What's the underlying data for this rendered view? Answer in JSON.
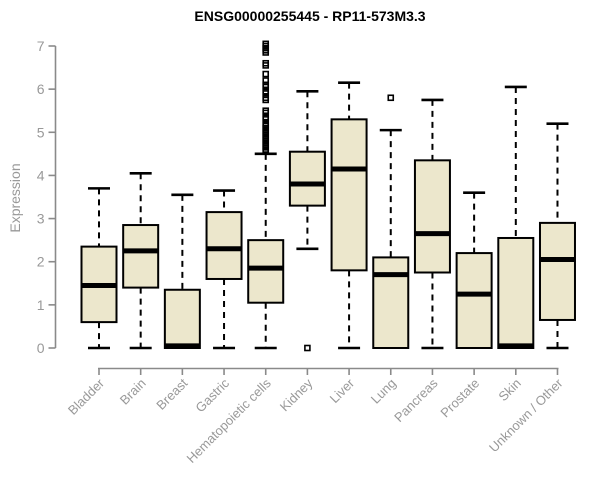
{
  "chart_data": {
    "type": "boxplot",
    "title": "ENSG00000255445 - RP11-573M3.3",
    "ylabel": "Expression",
    "xlabel": "",
    "ylim": [
      0,
      7
    ],
    "yticks": [
      0,
      1,
      2,
      3,
      4,
      5,
      6,
      7
    ],
    "grid": false,
    "legend": "none",
    "categories": [
      "Bladder",
      "Brain",
      "Breast",
      "Gastric",
      "Hematopoietic cells",
      "Kidney",
      "Liver",
      "Lung",
      "Pancreas",
      "Prostate",
      "Skin",
      "Unknown / Other"
    ],
    "series": [
      {
        "name": "Bladder",
        "whisker_low": 0,
        "q1": 0.6,
        "median": 1.45,
        "q3": 2.35,
        "whisker_high": 3.7,
        "outliers": []
      },
      {
        "name": "Brain",
        "whisker_low": 0,
        "q1": 1.4,
        "median": 2.25,
        "q3": 2.85,
        "whisker_high": 4.05,
        "outliers": []
      },
      {
        "name": "Breast",
        "whisker_low": 0,
        "q1": 0,
        "median": 0.05,
        "q3": 1.35,
        "whisker_high": 3.55,
        "outliers": []
      },
      {
        "name": "Gastric",
        "whisker_low": 0,
        "q1": 1.6,
        "median": 2.3,
        "q3": 3.15,
        "whisker_high": 3.65,
        "outliers": []
      },
      {
        "name": "Hematopoietic cells",
        "whisker_low": 0,
        "q1": 1.05,
        "median": 1.85,
        "q3": 2.5,
        "whisker_high": 4.5,
        "outliers": [
          4.55,
          4.6,
          4.65,
          4.7,
          4.75,
          4.8,
          4.85,
          4.9,
          4.95,
          5.0,
          5.05,
          5.1,
          5.15,
          5.2,
          5.3,
          5.35,
          5.45,
          5.5,
          5.75,
          5.8,
          5.9,
          5.95,
          6.05,
          6.1,
          6.2,
          6.35,
          6.55,
          6.6,
          6.85,
          6.9,
          6.95,
          7.0,
          7.05
        ]
      },
      {
        "name": "Kidney",
        "whisker_low": 2.3,
        "q1": 3.3,
        "median": 3.8,
        "q3": 4.55,
        "whisker_high": 5.95,
        "outliers": [
          0
        ]
      },
      {
        "name": "Liver",
        "whisker_low": 0,
        "q1": 1.8,
        "median": 4.15,
        "q3": 5.3,
        "whisker_high": 6.15,
        "outliers": []
      },
      {
        "name": "Lung",
        "whisker_low": 0,
        "q1": 0,
        "median": 1.7,
        "q3": 2.1,
        "whisker_high": 5.05,
        "outliers": [
          5.8
        ]
      },
      {
        "name": "Pancreas",
        "whisker_low": 0,
        "q1": 1.75,
        "median": 2.65,
        "q3": 4.35,
        "whisker_high": 5.75,
        "outliers": []
      },
      {
        "name": "Prostate",
        "whisker_low": 0,
        "q1": 0,
        "median": 1.25,
        "q3": 2.2,
        "whisker_high": 3.6,
        "outliers": []
      },
      {
        "name": "Skin",
        "whisker_low": 0,
        "q1": 0,
        "median": 0.05,
        "q3": 2.55,
        "whisker_high": 6.05,
        "outliers": []
      },
      {
        "name": "Unknown / Other",
        "whisker_low": 0,
        "q1": 0.65,
        "median": 2.05,
        "q3": 2.9,
        "whisker_high": 5.2,
        "outliers": []
      }
    ],
    "colors": {
      "box_fill": "#ece7cc",
      "box_border": "#000000",
      "median": "#000000",
      "whisker": "#000000",
      "outlier": "#000000",
      "axis": "#8a8a8a",
      "tick_label": "#999999",
      "title": "#000000",
      "background": "#ffffff"
    }
  }
}
